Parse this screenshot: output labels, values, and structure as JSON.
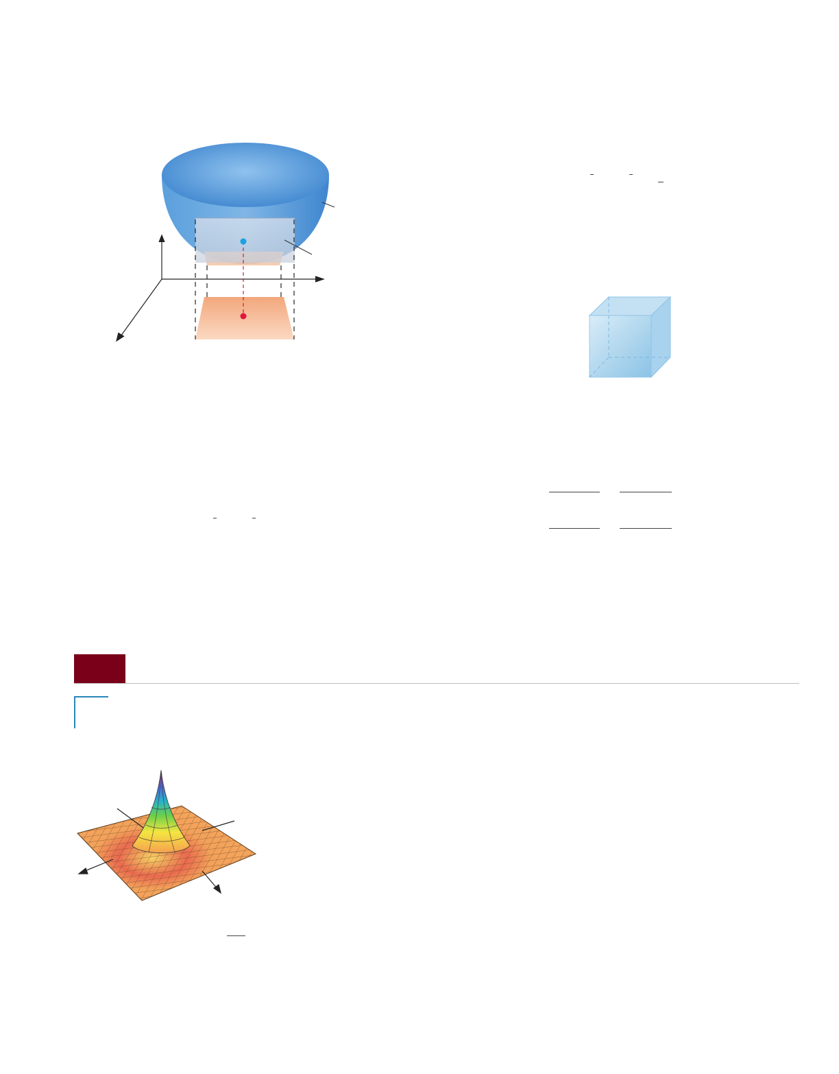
{
  "page": {
    "background": "#ffffff",
    "colors": {
      "section_box": "#7a0019",
      "rule": "#bdbdbd",
      "corner_bracket": "#2a86b8",
      "bowl_blue": "#4a90d6",
      "projection_orange": "#f2a87a",
      "point_blue": "#1aa3e0",
      "point_red": "#e0183c",
      "cube_blue": "#9fcde9"
    }
  },
  "figures": {
    "hemisphere": {
      "icons": [
        "hemisphere-surface",
        "surface-patch",
        "projection-region",
        "axes",
        "leader-lines"
      ]
    },
    "cube": {
      "icons": [
        "translucent-cube"
      ]
    },
    "peak_surface": {
      "icons": [
        "mesh-surface",
        "axis-arrows"
      ]
    }
  }
}
